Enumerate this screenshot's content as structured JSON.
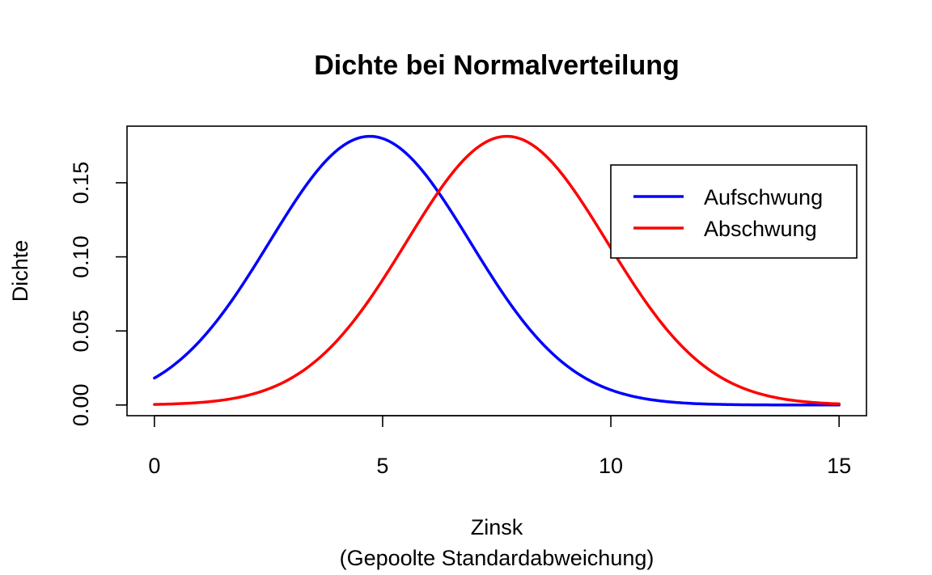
{
  "chart_data": {
    "type": "line",
    "title": "Dichte bei Normalverteilung",
    "xlabel": "Zinsk",
    "xlabel_sub": "(Gepoolte Standardabweichung)",
    "ylabel": "Dichte",
    "xlim": [
      -0.6,
      15.6
    ],
    "ylim": [
      -0.0072,
      0.1882
    ],
    "x_ticks": [
      0,
      5,
      10,
      15
    ],
    "x_tick_labels": [
      "0",
      "5",
      "10",
      "15"
    ],
    "y_ticks": [
      0,
      0.05,
      0.1,
      0.15
    ],
    "y_tick_labels": [
      "0.00",
      "0.05",
      "0.10",
      "0.15"
    ],
    "grid": false,
    "legend_position": "top-right",
    "series": [
      {
        "name": "Aufschwung",
        "color": "#0000FF",
        "distribution": "normal",
        "mean": 4.72,
        "sd": 2.2,
        "x_range": [
          0,
          15
        ]
      },
      {
        "name": "Abschwung",
        "color": "#FF0000",
        "distribution": "normal",
        "mean": 7.72,
        "sd": 2.2,
        "x_range": [
          0,
          15
        ]
      }
    ]
  }
}
